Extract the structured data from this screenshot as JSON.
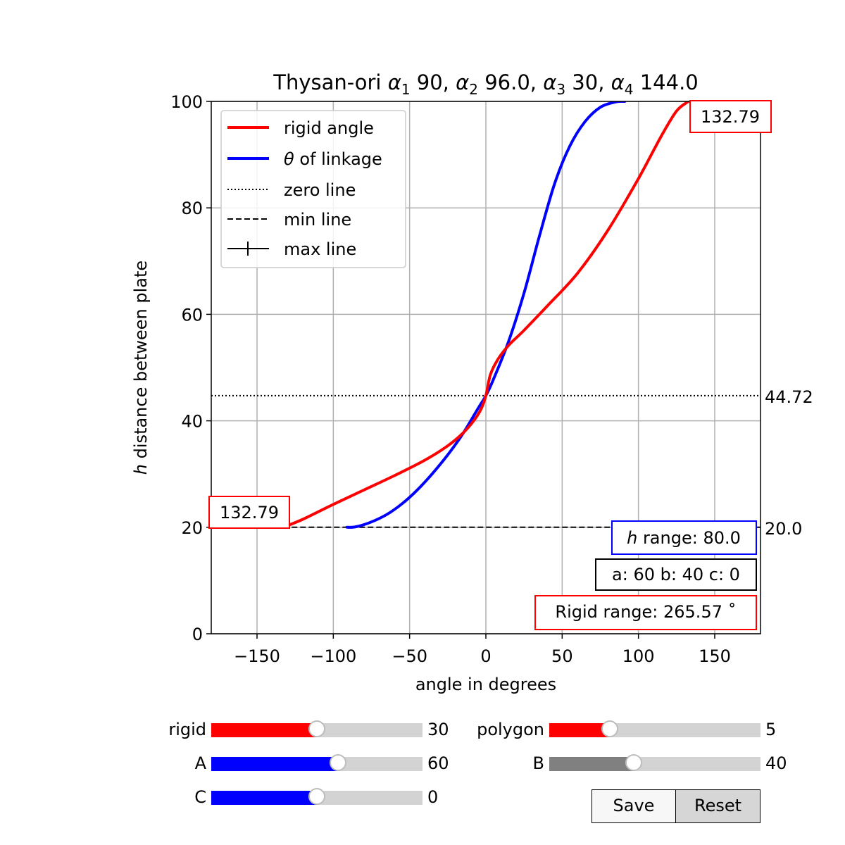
{
  "chart_data": {
    "type": "line",
    "title_prefix": "Thysan-ori ",
    "title_alphas": [
      {
        "sym": "α",
        "sub": "1",
        "val": "90"
      },
      {
        "sym": "α",
        "sub": "2",
        "val": "96.0"
      },
      {
        "sym": "α",
        "sub": "3",
        "val": "30"
      },
      {
        "sym": "α",
        "sub": "4",
        "val": "144.0"
      }
    ],
    "xlabel": "angle in degrees",
    "ylabel_italic": "h",
    "ylabel_rest": " distance between plate",
    "xlim": [
      -180,
      180
    ],
    "ylim": [
      0,
      100
    ],
    "xticks": [
      -150,
      -100,
      -50,
      0,
      50,
      100,
      150
    ],
    "xtick_labels": [
      "−150",
      "−100",
      "−50",
      "0",
      "50",
      "100",
      "150"
    ],
    "yticks": [
      0,
      20,
      40,
      60,
      80,
      100
    ],
    "ytick_labels": [
      "0",
      "20",
      "40",
      "60",
      "80",
      "100"
    ],
    "grid": true,
    "legend_position": "top-left",
    "legend": [
      {
        "label": "rigid angle",
        "style": "solid",
        "color": "#ff0000"
      },
      {
        "label_italic": "θ",
        "label_rest": " of linkage",
        "style": "solid",
        "color": "#0000ff"
      },
      {
        "label": "zero line",
        "style": "dotted",
        "color": "#000000"
      },
      {
        "label": "min line",
        "style": "dashed",
        "color": "#000000"
      },
      {
        "label": "max line",
        "style": "plus",
        "color": "#000000"
      }
    ],
    "series": [
      {
        "name": "rigid angle",
        "color": "#ff0000",
        "x": [
          -132.79,
          -120,
          -100,
          -80,
          -60,
          -40,
          -25,
          -15,
          -8,
          -3,
          0,
          3,
          8,
          15,
          25,
          40,
          60,
          80,
          100,
          115,
          125,
          132.79
        ],
        "y": [
          20,
          21.5,
          24.3,
          27.0,
          29.7,
          32.6,
          35.3,
          37.7,
          40.0,
          42.3,
          44.72,
          48.7,
          51.6,
          54.2,
          57.0,
          61.5,
          67.7,
          75.8,
          85.5,
          93.5,
          98.2,
          100
        ]
      },
      {
        "name": "θ of linkage",
        "color": "#0000ff",
        "x": [
          -91,
          -85,
          -75,
          -65,
          -55,
          -45,
          -35,
          -25,
          -15,
          -5,
          0,
          5,
          15,
          25,
          35,
          45,
          55,
          65,
          75,
          85,
          91
        ],
        "y": [
          20,
          20.1,
          21.0,
          22.4,
          24.4,
          27.0,
          30.1,
          33.6,
          37.6,
          42.4,
          44.72,
          47.8,
          55.0,
          64.0,
          74.6,
          84.5,
          91.6,
          96.2,
          98.9,
          99.9,
          100
        ]
      }
    ],
    "zero_line": 44.72,
    "min_line": 20.0,
    "right_labels": [
      "44.72",
      "20.0"
    ],
    "boxes": {
      "top_right": "132.79",
      "bottom_left": "132.79",
      "h_range_italic": "h",
      "h_range_rest": " range: 80.0",
      "abc": "a: 60 b: 40 c: 0",
      "rigid_range": "Rigid range: 265.57 ˚"
    },
    "colors": {
      "rigid": "#ff0000",
      "linkage": "#0000ff",
      "grid": "#b0b0b0"
    }
  },
  "sliders": [
    {
      "label": "rigid",
      "value": "30",
      "fraction": 0.5,
      "color": "#ff0000"
    },
    {
      "label": "A",
      "value": "60",
      "fraction": 0.6,
      "color": "#0000ff"
    },
    {
      "label": "C",
      "value": "0",
      "fraction": 0.5,
      "color": "#0000ff"
    },
    {
      "label": "polygon",
      "value": "5",
      "fraction": 0.286,
      "color": "#ff0000"
    },
    {
      "label": "B",
      "value": "40",
      "fraction": 0.4,
      "color": "#808080"
    }
  ],
  "buttons": {
    "save": "Save",
    "reset": "Reset"
  }
}
